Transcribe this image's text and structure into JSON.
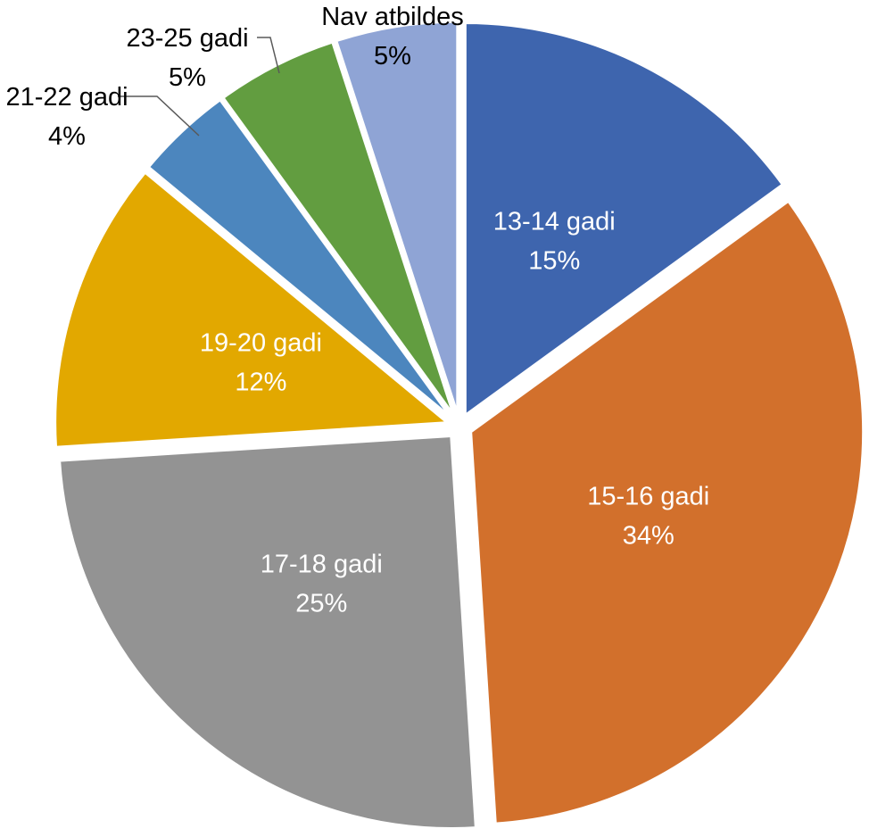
{
  "chart_data": {
    "type": "pie",
    "title": "",
    "start_angle_deg": 0,
    "direction": "clockwise",
    "exploded": true,
    "slices": [
      {
        "label": "13-14 gadi",
        "value": 15,
        "value_label": "15%",
        "color": "#3E65AE",
        "label_color": "#ffffff",
        "label_placement": "inside"
      },
      {
        "label": "15-16 gadi",
        "value": 34,
        "value_label": "34%",
        "color": "#D2702C",
        "label_color": "#ffffff",
        "label_placement": "inside"
      },
      {
        "label": "17-18 gadi",
        "value": 25,
        "value_label": "25%",
        "color": "#939393",
        "label_color": "#ffffff",
        "label_placement": "inside"
      },
      {
        "label": "19-20 gadi",
        "value": 12,
        "value_label": "12%",
        "color": "#E2A800",
        "label_color": "#ffffff",
        "label_placement": "inside"
      },
      {
        "label": "21-22 gadi",
        "value": 4,
        "value_label": "4%",
        "color": "#4C86BE",
        "label_color": "#000000",
        "label_placement": "outside"
      },
      {
        "label": "23-25 gadi",
        "value": 5,
        "value_label": "5%",
        "color": "#629D40",
        "label_color": "#000000",
        "label_placement": "outside"
      },
      {
        "label": "Nav atbildes",
        "value": 5,
        "value_label": "5%",
        "color": "#8FA4D5",
        "label_color": "#000000",
        "label_placement": "outside"
      }
    ]
  }
}
